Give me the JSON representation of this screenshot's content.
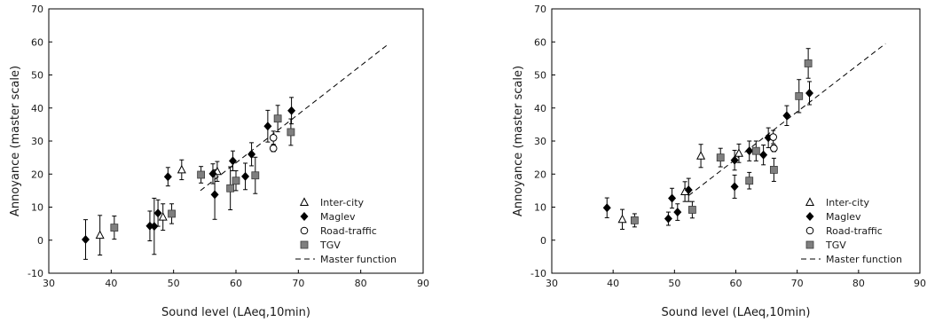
{
  "chart_data": [
    {
      "type": "scatter",
      "title": "",
      "xlabel": "Sound level (LAeq,10min)",
      "ylabel": "Annoyance (master scale)",
      "xlim": [
        30,
        90
      ],
      "ylim": [
        -10,
        70
      ],
      "xticks": [
        "30",
        "40",
        "50",
        "60",
        "70",
        "80",
        "90"
      ],
      "yticks": [
        "-10",
        "0",
        "10",
        "20",
        "30",
        "40",
        "50",
        "60",
        "70"
      ],
      "legend_position": "bottom-right",
      "series": [
        {
          "name": "Inter-city",
          "marker": "triangle-open",
          "color": "#000000",
          "points": [
            {
              "x": 38.2,
              "y": 1.5,
              "err": 6
            },
            {
              "x": 48.3,
              "y": 7.0,
              "err": 4
            },
            {
              "x": 51.3,
              "y": 21.3,
              "err": 3
            },
            {
              "x": 57.0,
              "y": 20.8,
              "err": 3
            }
          ]
        },
        {
          "name": "Maglev",
          "marker": "diamond-filled",
          "color": "#000000",
          "points": [
            {
              "x": 35.9,
              "y": 0.2,
              "err": 6
            },
            {
              "x": 46.2,
              "y": 4.3,
              "err": 4.5
            },
            {
              "x": 46.9,
              "y": 4.2,
              "err": 8.5
            },
            {
              "x": 47.5,
              "y": 8.2,
              "err": 4
            },
            {
              "x": 49.1,
              "y": 19.2,
              "err": 2.8
            },
            {
              "x": 56.3,
              "y": 20.1,
              "err": 3
            },
            {
              "x": 56.6,
              "y": 13.8,
              "err": 7.5
            },
            {
              "x": 59.5,
              "y": 24.0,
              "err": 3
            },
            {
              "x": 61.5,
              "y": 19.3,
              "err": 4
            },
            {
              "x": 62.5,
              "y": 26.0,
              "err": 3.5
            },
            {
              "x": 65.1,
              "y": 34.5,
              "err": 4.8
            },
            {
              "x": 68.9,
              "y": 39.2,
              "err": 4
            }
          ]
        },
        {
          "name": "Road-traffic",
          "marker": "circle-open",
          "color": "#000000",
          "points": [
            {
              "x": 66.0,
              "y": 31.0,
              "err": 2
            },
            {
              "x": 66.0,
              "y": 27.8,
              "err": 1
            }
          ]
        },
        {
          "name": "TGV",
          "marker": "square-filled",
          "color": "#7f7f7f",
          "points": [
            {
              "x": 40.5,
              "y": 3.8,
              "err": 3.5
            },
            {
              "x": 49.7,
              "y": 8.0,
              "err": 3
            },
            {
              "x": 54.4,
              "y": 19.8,
              "err": 2.5
            },
            {
              "x": 59.1,
              "y": 15.7,
              "err": 6.5
            },
            {
              "x": 60.0,
              "y": 18.0,
              "err": 3
            },
            {
              "x": 63.1,
              "y": 19.6,
              "err": 5.5
            },
            {
              "x": 66.7,
              "y": 36.8,
              "err": 4
            },
            {
              "x": 68.8,
              "y": 32.7,
              "err": 4
            }
          ]
        }
      ],
      "master_function": {
        "name": "Master function",
        "style": "dashed",
        "x": [
          54.3,
          84.2
        ],
        "y": [
          15.0,
          59.0
        ]
      }
    },
    {
      "type": "scatter",
      "title": "",
      "xlabel": "Sound level (LAeq,10min)",
      "ylabel": "Annoyance (master scale)",
      "xlim": [
        30,
        90
      ],
      "ylim": [
        -10,
        70
      ],
      "xticks": [
        "30",
        "40",
        "50",
        "60",
        "70",
        "80",
        "90"
      ],
      "yticks": [
        "-10",
        "0",
        "10",
        "20",
        "30",
        "40",
        "50",
        "60",
        "70"
      ],
      "legend_position": "bottom-right",
      "series": [
        {
          "name": "Inter-city",
          "marker": "triangle-open",
          "color": "#000000",
          "points": [
            {
              "x": 41.5,
              "y": 6.3,
              "err": 3
            },
            {
              "x": 51.7,
              "y": 14.7,
              "err": 3
            },
            {
              "x": 54.3,
              "y": 25.5,
              "err": 3.5
            },
            {
              "x": 60.5,
              "y": 26.3,
              "err": 2.8
            }
          ]
        },
        {
          "name": "Maglev",
          "marker": "diamond-filled",
          "color": "#000000",
          "points": [
            {
              "x": 39.0,
              "y": 9.8,
              "err": 3
            },
            {
              "x": 49.0,
              "y": 6.5,
              "err": 2
            },
            {
              "x": 49.6,
              "y": 12.7,
              "err": 3
            },
            {
              "x": 50.5,
              "y": 8.5,
              "err": 2.5
            },
            {
              "x": 52.3,
              "y": 15.2,
              "err": 3.5
            },
            {
              "x": 59.8,
              "y": 16.2,
              "err": 3.5
            },
            {
              "x": 59.8,
              "y": 24.2,
              "err": 3
            },
            {
              "x": 62.2,
              "y": 27.0,
              "err": 3
            },
            {
              "x": 64.5,
              "y": 25.8,
              "err": 3
            },
            {
              "x": 65.3,
              "y": 31.0,
              "err": 3
            },
            {
              "x": 68.3,
              "y": 37.7,
              "err": 3
            },
            {
              "x": 72.0,
              "y": 44.5,
              "err": 3.5
            }
          ]
        },
        {
          "name": "Road-traffic",
          "marker": "circle-open",
          "color": "#000000",
          "points": [
            {
              "x": 66.1,
              "y": 31.2,
              "err": 2
            },
            {
              "x": 66.2,
              "y": 27.8,
              "err": 1
            }
          ]
        },
        {
          "name": "TGV",
          "marker": "square-filled",
          "color": "#7f7f7f",
          "points": [
            {
              "x": 43.5,
              "y": 6.0,
              "err": 2
            },
            {
              "x": 52.9,
              "y": 9.2,
              "err": 2.5
            },
            {
              "x": 57.5,
              "y": 25.0,
              "err": 2.8
            },
            {
              "x": 62.2,
              "y": 18.0,
              "err": 2.5
            },
            {
              "x": 63.3,
              "y": 27.0,
              "err": 3
            },
            {
              "x": 66.2,
              "y": 21.3,
              "err": 3.5
            },
            {
              "x": 70.3,
              "y": 43.6,
              "err": 5
            },
            {
              "x": 71.8,
              "y": 53.5,
              "err": 4.5
            }
          ]
        }
      ],
      "master_function": {
        "name": "Master function",
        "style": "dashed",
        "x": [
          52.3,
          84.4
        ],
        "y": [
          13.5,
          59.5
        ]
      }
    }
  ]
}
